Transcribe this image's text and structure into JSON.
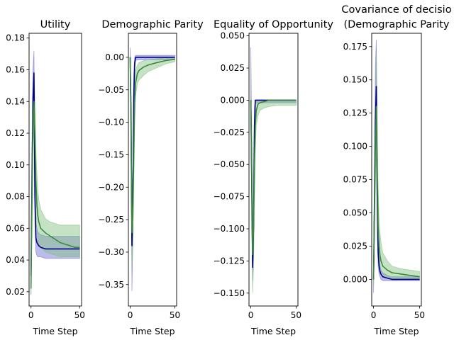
{
  "chart_data": [
    {
      "type": "line",
      "title": "Utility",
      "xlabel": "Time Step",
      "ylabel": "",
      "xlim": [
        -2,
        52
      ],
      "ylim": [
        0.011,
        0.183
      ],
      "xticks": [
        0,
        50
      ],
      "yticks": [
        0.02,
        0.04,
        0.06,
        0.08,
        0.1,
        0.12,
        0.14,
        0.16,
        0.18
      ],
      "ytick_labels": [
        "0.02",
        "0.04",
        "0.06",
        "0.08",
        "0.10",
        "0.12",
        "0.14",
        "0.16",
        "0.18"
      ],
      "series": [
        {
          "color": "#00008b",
          "band_color": "#6a6ad0",
          "x": [
            0,
            1,
            2,
            3,
            4,
            5,
            6,
            7,
            8,
            10,
            15,
            20,
            25,
            30,
            35,
            40,
            45,
            50
          ],
          "values": [
            0.03,
            0.09,
            0.142,
            0.158,
            0.08,
            0.054,
            0.051,
            0.05,
            0.049,
            0.048,
            0.047,
            0.047,
            0.047,
            0.047,
            0.047,
            0.047,
            0.047,
            0.047
          ],
          "lower": [
            0.018,
            0.07,
            0.12,
            0.142,
            0.065,
            0.045,
            0.043,
            0.042,
            0.042,
            0.042,
            0.041,
            0.041,
            0.041,
            0.041,
            0.041,
            0.041,
            0.041,
            0.041
          ],
          "upper": [
            0.045,
            0.115,
            0.16,
            0.172,
            0.1,
            0.064,
            0.06,
            0.058,
            0.057,
            0.056,
            0.055,
            0.055,
            0.055,
            0.055,
            0.055,
            0.055,
            0.055,
            0.055
          ]
        },
        {
          "color": "#3a8a3a",
          "band_color": "#7fbf7f",
          "x": [
            0,
            1,
            2,
            3,
            4,
            5,
            6,
            7,
            8,
            10,
            15,
            20,
            25,
            30,
            35,
            40,
            45,
            50
          ],
          "values": [
            0.022,
            0.08,
            0.13,
            0.14,
            0.12,
            0.09,
            0.075,
            0.068,
            0.064,
            0.06,
            0.057,
            0.055,
            0.053,
            0.051,
            0.05,
            0.049,
            0.048,
            0.048
          ],
          "lower": [
            0.018,
            0.06,
            0.11,
            0.125,
            0.1,
            0.07,
            0.058,
            0.052,
            0.05,
            0.048,
            0.045,
            0.044,
            0.043,
            0.042,
            0.042,
            0.042,
            0.042,
            0.042
          ],
          "upper": [
            0.03,
            0.1,
            0.15,
            0.158,
            0.14,
            0.11,
            0.095,
            0.085,
            0.078,
            0.072,
            0.066,
            0.064,
            0.063,
            0.062,
            0.062,
            0.062,
            0.062,
            0.062
          ]
        }
      ]
    },
    {
      "type": "line",
      "title": "Demographic Parity",
      "xlabel": "Time Step",
      "ylabel": "",
      "xlim": [
        -2,
        52
      ],
      "ylim": [
        -0.383,
        0.037
      ],
      "xticks": [
        0,
        50
      ],
      "yticks": [
        0.0,
        -0.05,
        -0.1,
        -0.15,
        -0.2,
        -0.25,
        -0.3,
        -0.35
      ],
      "ytick_labels": [
        "0.00",
        "−0.05",
        "−0.10",
        "−0.15",
        "−0.20",
        "−0.25",
        "−0.30",
        "−0.35"
      ],
      "series": [
        {
          "color": "#00008b",
          "band_color": "#6a6ad0",
          "x": [
            0,
            1,
            2,
            3,
            4,
            5,
            6,
            8,
            10,
            15,
            20,
            30,
            40,
            50
          ],
          "values": [
            0.0,
            -0.1,
            -0.29,
            -0.22,
            -0.06,
            -0.01,
            0.0,
            0.0,
            0.0,
            0.0,
            0.0,
            0.0,
            0.0,
            0.0
          ],
          "lower": [
            -0.01,
            -0.15,
            -0.36,
            -0.27,
            -0.09,
            -0.02,
            -0.005,
            -0.004,
            -0.004,
            -0.004,
            -0.004,
            -0.004,
            -0.004,
            -0.004
          ],
          "upper": [
            0.015,
            -0.05,
            -0.22,
            -0.17,
            -0.03,
            0.0,
            0.003,
            0.003,
            0.003,
            0.003,
            0.003,
            0.003,
            0.003,
            0.003
          ]
        },
        {
          "color": "#3a8a3a",
          "band_color": "#7fbf7f",
          "x": [
            0,
            1,
            2,
            3,
            4,
            5,
            6,
            8,
            10,
            15,
            20,
            30,
            40,
            50
          ],
          "values": [
            0.0,
            -0.12,
            -0.27,
            -0.24,
            -0.15,
            -0.07,
            -0.04,
            -0.025,
            -0.02,
            -0.015,
            -0.012,
            -0.008,
            -0.005,
            -0.003
          ],
          "lower": [
            -0.01,
            -0.17,
            -0.32,
            -0.29,
            -0.2,
            -0.1,
            -0.06,
            -0.04,
            -0.035,
            -0.028,
            -0.022,
            -0.016,
            -0.01,
            -0.007
          ],
          "upper": [
            0.005,
            -0.08,
            -0.2,
            -0.18,
            -0.1,
            -0.04,
            -0.02,
            -0.012,
            -0.008,
            -0.005,
            -0.004,
            -0.002,
            0.0,
            0.0
          ]
        }
      ]
    },
    {
      "type": "line",
      "title": "Equality of Opportunity",
      "xlabel": "Time Step",
      "ylabel": "",
      "xlim": [
        -2,
        52
      ],
      "ylim": [
        -0.16,
        0.052
      ],
      "xticks": [
        0,
        50
      ],
      "yticks": [
        0.05,
        0.025,
        0.0,
        -0.025,
        -0.05,
        -0.075,
        -0.1,
        -0.125,
        -0.15
      ],
      "ytick_labels": [
        "0.050",
        "0.025",
        "0.000",
        "−0.025",
        "−0.050",
        "−0.075",
        "−0.100",
        "−0.125",
        "−0.150"
      ],
      "series": [
        {
          "color": "#00008b",
          "band_color": "#6a6ad0",
          "x": [
            0,
            1,
            2,
            3,
            4,
            5,
            6,
            8,
            10,
            15,
            20,
            30,
            40,
            50
          ],
          "values": [
            0.0,
            -0.06,
            -0.13,
            -0.1,
            -0.02,
            0.0,
            0.0,
            0.0,
            0.0,
            0.0,
            0.0,
            0.0,
            0.0,
            0.0
          ],
          "lower": [
            -0.005,
            -0.09,
            -0.14,
            -0.12,
            -0.04,
            -0.003,
            -0.002,
            -0.002,
            -0.002,
            -0.002,
            -0.002,
            -0.002,
            -0.002,
            -0.002
          ],
          "upper": [
            0.041,
            -0.03,
            -0.1,
            -0.07,
            -0.005,
            0.0,
            0.0,
            0.0,
            0.0,
            0.0,
            0.0,
            0.0,
            0.0,
            0.0
          ]
        },
        {
          "color": "#3a8a3a",
          "band_color": "#7fbf7f",
          "x": [
            0,
            1,
            2,
            3,
            4,
            5,
            6,
            8,
            10,
            15,
            20,
            30,
            40,
            50
          ],
          "values": [
            0.0,
            -0.05,
            -0.12,
            -0.1,
            -0.05,
            -0.02,
            -0.008,
            -0.003,
            -0.002,
            -0.001,
            0.0,
            0.0,
            0.0,
            0.0
          ],
          "lower": [
            -0.005,
            -0.08,
            -0.15,
            -0.13,
            -0.08,
            -0.04,
            -0.02,
            -0.012,
            -0.008,
            -0.006,
            -0.005,
            -0.004,
            -0.004,
            -0.004
          ],
          "upper": [
            0.003,
            -0.02,
            -0.09,
            -0.07,
            -0.02,
            0.0,
            0.0,
            0.0,
            0.0,
            0.0,
            0.0,
            0.0,
            0.0,
            0.0
          ]
        }
      ]
    },
    {
      "type": "line",
      "title": "Covariance of decisio\n(Demographic Parity",
      "xlabel": "Time Step",
      "ylabel": "",
      "xlim": [
        -2,
        52
      ],
      "ylim": [
        -0.02,
        0.185
      ],
      "xticks": [
        0,
        50
      ],
      "yticks": [
        0.175,
        0.15,
        0.125,
        0.1,
        0.075,
        0.05,
        0.025,
        0.0
      ],
      "ytick_labels": [
        "0.175",
        "0.150",
        "0.125",
        "0.100",
        "0.075",
        "0.050",
        "0.025",
        "0.000"
      ],
      "series": [
        {
          "color": "#00008b",
          "band_color": "#6a6ad0",
          "x": [
            0,
            1,
            2,
            3,
            4,
            5,
            6,
            7,
            8,
            10,
            15,
            20,
            30,
            40,
            50
          ],
          "values": [
            0.0,
            0.06,
            0.12,
            0.145,
            0.06,
            0.02,
            0.01,
            0.006,
            0.004,
            0.002,
            0.001,
            0.0,
            0.0,
            0.0,
            0.0
          ],
          "lower": [
            -0.01,
            0.03,
            0.09,
            0.11,
            0.035,
            0.01,
            0.004,
            0.002,
            0.0,
            -0.001,
            -0.001,
            -0.001,
            -0.001,
            -0.001,
            -0.001
          ],
          "upper": [
            0.005,
            0.09,
            0.16,
            0.18,
            0.09,
            0.03,
            0.016,
            0.01,
            0.007,
            0.005,
            0.003,
            0.002,
            0.002,
            0.002,
            0.002
          ]
        },
        {
          "color": "#3a8a3a",
          "band_color": "#7fbf7f",
          "x": [
            0,
            1,
            2,
            3,
            4,
            5,
            6,
            7,
            8,
            10,
            15,
            20,
            30,
            40,
            50
          ],
          "values": [
            0.0,
            0.05,
            0.1,
            0.13,
            0.08,
            0.04,
            0.025,
            0.018,
            0.014,
            0.01,
            0.007,
            0.005,
            0.004,
            0.003,
            0.002
          ],
          "lower": [
            -0.005,
            0.03,
            0.07,
            0.1,
            0.05,
            0.02,
            0.012,
            0.008,
            0.006,
            0.004,
            0.002,
            0.001,
            0.0,
            0.0,
            0.0
          ],
          "upper": [
            0.005,
            0.08,
            0.13,
            0.17,
            0.12,
            0.07,
            0.045,
            0.035,
            0.028,
            0.02,
            0.014,
            0.01,
            0.008,
            0.007,
            0.006
          ]
        }
      ]
    }
  ]
}
